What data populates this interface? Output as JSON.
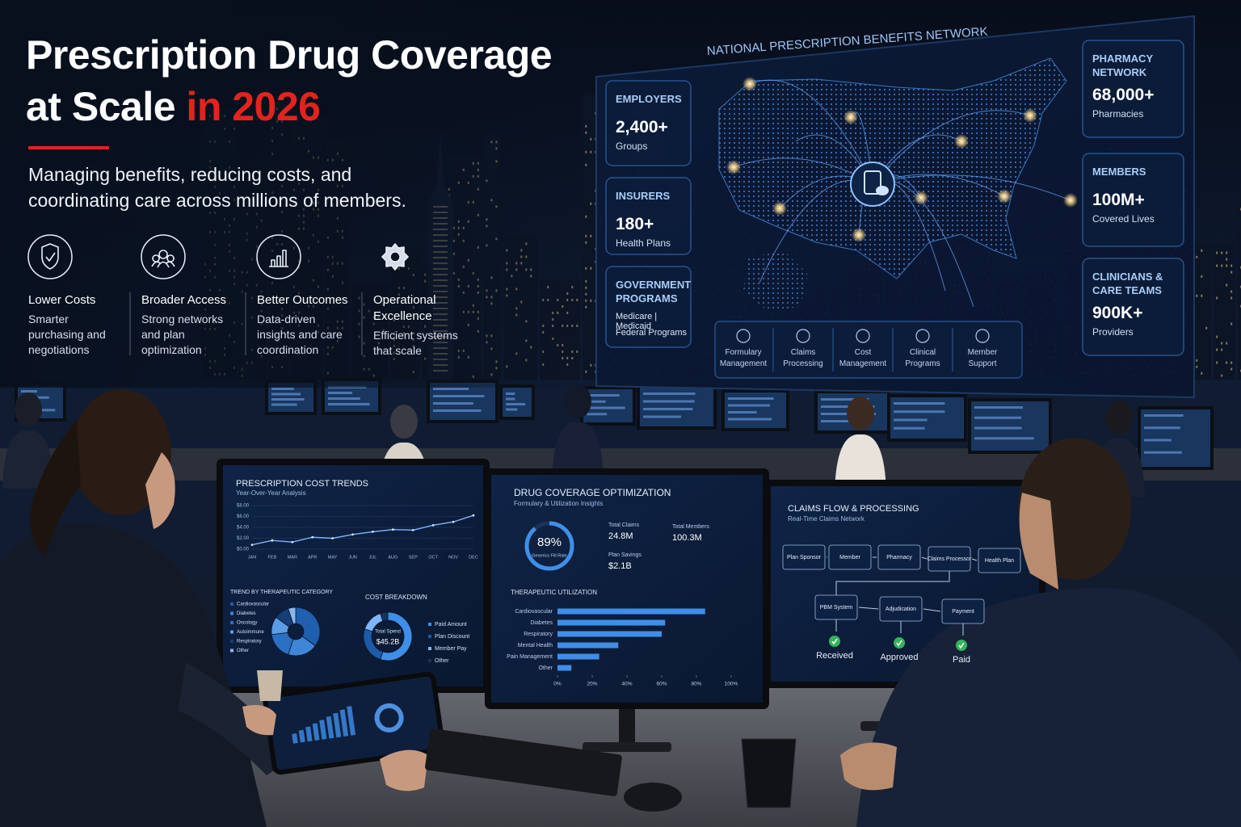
{
  "header": {
    "title": "Prescription Drug Coverage",
    "title_line2": "at Scale",
    "title_highlight": "in 2026",
    "subtitle": "Managing benefits, reducing costs, and coordinating care across millions of members."
  },
  "features": [
    {
      "title": "Lower Costs",
      "text": "Smarter purchasing and negotiations"
    },
    {
      "title": "Broader Access",
      "text": "Strong networks and plan optimization"
    },
    {
      "title": "Better Outcomes",
      "text": "Data-driven insights and care coordination"
    },
    {
      "title": "Operational Excellence",
      "text": "Efficient systems that scale"
    }
  ],
  "network": {
    "title": "NATIONAL PRESCRIPTION BENEFITS NETWORK",
    "left": [
      {
        "label": "EMPLOYERS",
        "value": "2,400+",
        "caption": "Groups"
      },
      {
        "label": "INSURERS",
        "value": "180+",
        "caption": "Health Plans"
      },
      {
        "label": "GOVERNMENT PROGRAMS",
        "value": "Medicare | Medicaid",
        "caption": "Federal Programs"
      }
    ],
    "right": [
      {
        "label": "PHARMACY NETWORK",
        "value": "68,000+",
        "caption": "Pharmacies"
      },
      {
        "label": "MEMBERS",
        "value": "100M+",
        "caption": "Covered Lives"
      },
      {
        "label": "CLINICIANS & CARE TEAMS",
        "value": "900K+",
        "caption": "Providers"
      }
    ],
    "services": [
      "Formulary Management",
      "Claims Processing",
      "Cost Management",
      "Clinical Programs",
      "Member Support"
    ]
  },
  "cost_trends": {
    "type": "line",
    "title": "PRESCRIPTION COST TRENDS",
    "subtitle": "Year-Over-Year Analysis",
    "categories": [
      "JAN",
      "FEB",
      "MAR",
      "APR",
      "MAY",
      "JUN",
      "JUL",
      "AUG",
      "SEP",
      "OCT",
      "NOV",
      "DEC"
    ],
    "values": [
      0.8,
      1.6,
      1.3,
      2.2,
      2.0,
      2.7,
      3.2,
      3.6,
      3.5,
      4.4,
      5.0,
      6.2
    ],
    "color": "#7fb4ff",
    "ylim": [
      0,
      8
    ],
    "yticks": [
      {
        "value": 0,
        "label": "$0.00"
      },
      {
        "value": 2,
        "label": "$2.00"
      },
      {
        "value": 4,
        "label": "$4.00"
      },
      {
        "value": 6,
        "label": "$6.00"
      },
      {
        "value": 8,
        "label": "$8.00"
      }
    ]
  },
  "category_trend": {
    "type": "pie",
    "title": "TREND BY THERAPEUTIC CATEGORY",
    "categories": [
      "Cardiovascular",
      "Diabetes",
      "Oncology",
      "Autoimmune",
      "Respiratory",
      "Other"
    ],
    "values": [
      35,
      20,
      18,
      12,
      10,
      5
    ],
    "colors": [
      "#1f5fae",
      "#3f86d6",
      "#2a6fc4",
      "#5b9de6",
      "#163f78",
      "#8ab8ee"
    ]
  },
  "cost_breakdown": {
    "type": "pie",
    "title": "COST BREAKDOWN",
    "center_label": "Total Spend",
    "center_value": "$45.2B",
    "categories": [
      "Paid Amount",
      "Plan Discount",
      "Member Pay",
      "Other"
    ],
    "values": [
      55,
      25,
      15,
      5
    ],
    "colors": [
      "#3f8fe8",
      "#1d5aa8",
      "#7fb4ff",
      "#16335e"
    ]
  },
  "coverage": {
    "title": "DRUG COVERAGE OPTIMIZATION",
    "subtitle": "Formulary & Utilization Insights",
    "gauge": {
      "value": 89,
      "value_label": "89%",
      "caption": "Generics Fill Rate"
    },
    "kpis": [
      {
        "label": "Total Claims",
        "value": "24.8M"
      },
      {
        "label": "Total Members",
        "value": "100.3M"
      },
      {
        "label": "Plan Savings",
        "value": "$2.1B"
      }
    ]
  },
  "utilization": {
    "type": "hbar",
    "title": "THERAPEUTIC UTILIZATION",
    "categories": [
      "Cardiovascular",
      "Diabetes",
      "Respiratory",
      "Mental Health",
      "Pain Management",
      "Other"
    ],
    "values": [
      85,
      62,
      60,
      35,
      24,
      8
    ],
    "color": "#3f8fe8",
    "xlim": [
      0,
      100
    ],
    "xticks": [
      {
        "value": 0,
        "label": "0%"
      },
      {
        "value": 20,
        "label": "20%"
      },
      {
        "value": 40,
        "label": "40%"
      },
      {
        "value": 60,
        "label": "60%"
      },
      {
        "value": 80,
        "label": "80%"
      },
      {
        "value": 100,
        "label": "100%"
      }
    ]
  },
  "claims_flow": {
    "title": "CLAIMS FLOW & PROCESSING",
    "subtitle": "Real-Time Claims Network",
    "nodes": [
      "Plan Sponsor",
      "Member",
      "Pharmacy",
      "Claims Processor",
      "Health Plan",
      "PBM System",
      "Adjudication",
      "Payment"
    ],
    "statuses": [
      "Received",
      "Approved",
      "Paid"
    ]
  }
}
